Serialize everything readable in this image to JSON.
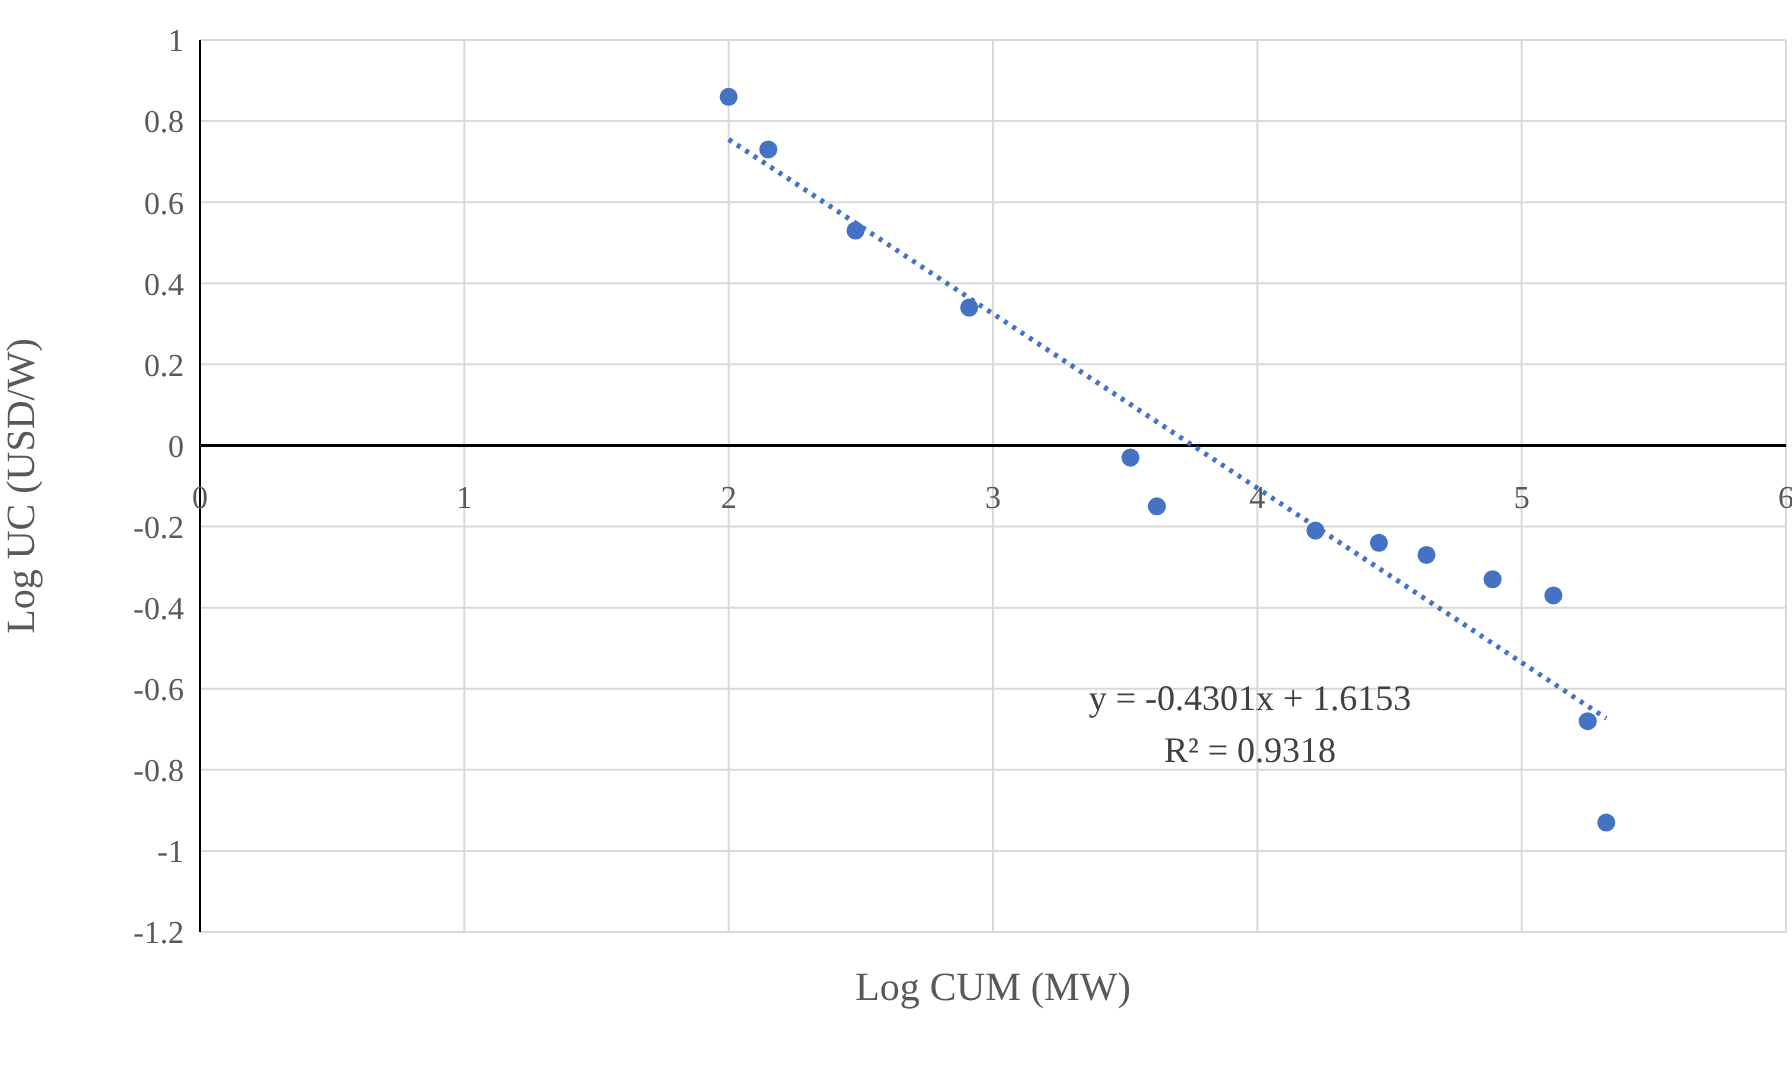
{
  "chart_data": {
    "type": "scatter",
    "xlabel": "Log CUM (MW)",
    "ylabel": "Log UC (USD/W)",
    "xlim": [
      0,
      6
    ],
    "xticks": [
      0,
      1,
      2,
      3,
      4,
      5,
      6
    ],
    "ylim": [
      -1.2,
      1
    ],
    "yticks": [
      -1.2,
      -1,
      -0.8,
      -0.6,
      -0.4,
      -0.2,
      0,
      0.2,
      0.4,
      0.6,
      0.8,
      1
    ],
    "grid": true,
    "marker": "circle",
    "series": [
      {
        "color": "#4472c4",
        "x": [
          2.0,
          2.15,
          2.48,
          2.91,
          3.52,
          3.62,
          4.22,
          4.46,
          4.64,
          4.89,
          5.12,
          5.25,
          5.32
        ],
        "values": [
          0.86,
          0.73,
          0.53,
          0.34,
          -0.03,
          -0.15,
          -0.21,
          -0.24,
          -0.27,
          -0.33,
          -0.37,
          -0.68,
          -0.93
        ]
      },
      {
        "type": "line",
        "color": "#4472c4",
        "line_style": "dotted",
        "marker": "none",
        "x": [
          2.0,
          5.32
        ],
        "values": [
          0.755,
          -0.673
        ]
      }
    ],
    "annotations": [
      "y = -0.4301x + 1.6153",
      "R² = 0.9318"
    ]
  }
}
